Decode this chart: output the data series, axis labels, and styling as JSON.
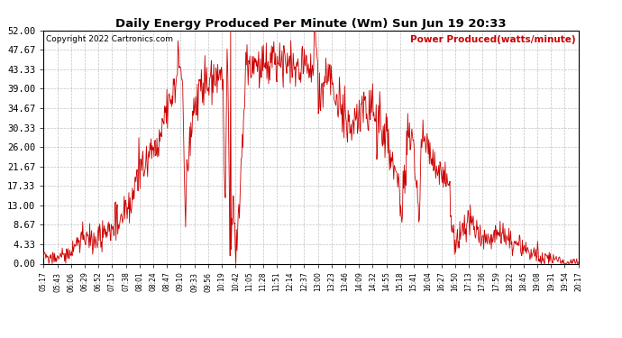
{
  "title": "Daily Energy Produced Per Minute (Wm) Sun Jun 19 20:33",
  "copyright": "Copyright 2022 Cartronics.com",
  "legend_label": "Power Produced(watts/minute)",
  "line_color": "#cc0000",
  "background_color": "#ffffff",
  "grid_color": "#999999",
  "ylim": [
    0,
    52
  ],
  "yticks": [
    0.0,
    4.33,
    8.67,
    13.0,
    17.33,
    21.67,
    26.0,
    30.33,
    34.67,
    39.0,
    43.33,
    47.67,
    52.0
  ],
  "ytick_labels": [
    "0.00",
    "4.33",
    "8.67",
    "13.00",
    "17.33",
    "21.67",
    "26.00",
    "30.33",
    "34.67",
    "39.00",
    "43.33",
    "47.67",
    "52.00"
  ],
  "xtick_labels": [
    "05:17",
    "05:43",
    "06:06",
    "06:29",
    "06:52",
    "07:15",
    "07:38",
    "08:01",
    "08:24",
    "08:47",
    "09:10",
    "09:33",
    "09:56",
    "10:19",
    "10:42",
    "11:05",
    "11:28",
    "11:51",
    "12:14",
    "12:37",
    "13:00",
    "13:23",
    "13:46",
    "14:09",
    "14:32",
    "14:55",
    "15:18",
    "15:41",
    "16:04",
    "16:27",
    "16:50",
    "17:13",
    "17:36",
    "17:59",
    "18:22",
    "18:45",
    "19:08",
    "19:31",
    "19:54",
    "20:17"
  ]
}
